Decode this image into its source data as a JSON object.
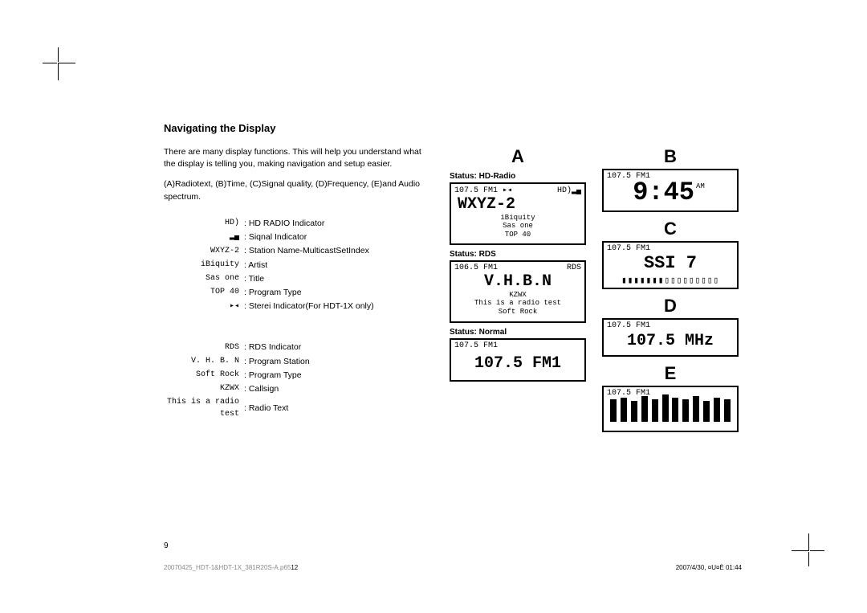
{
  "heading": "Navigating the Display",
  "intro": {
    "p1": "There are many display functions. This will help you understand what the display is telling you, making navigation and setup easier.",
    "p2": "(A)Radiotext, (B)Time, (C)Signal quality, (D)Frequency, (E)and Audio spectrum."
  },
  "legend_group1": [
    {
      "key": "HD)",
      "val": "HD RADIO Indicator"
    },
    {
      "key": "▂▄",
      "val": "Siqnal Indicator"
    },
    {
      "key": "WXYZ-2",
      "val": "Station Name-MulticastSetIndex"
    },
    {
      "key": "iBiquity",
      "val": "Artist"
    },
    {
      "key": "Sas one",
      "val": "Title"
    },
    {
      "key": "TOP 40",
      "val": "Program Type"
    },
    {
      "key": "▸◂",
      "val": "Sterei Indicator(For HDT-1X only)"
    }
  ],
  "legend_group2": [
    {
      "key": "RDS",
      "val": "RDS Indicator"
    },
    {
      "key": "V. H. B. N",
      "val": "Program Station"
    },
    {
      "key": "Soft Rock",
      "val": "Program Type"
    },
    {
      "key": "KZWX",
      "val": "Callsign"
    },
    {
      "key": "This is a radio test",
      "val": "Radio Text"
    }
  ],
  "panels": {
    "A": {
      "letter": "A",
      "status": "Status: HD-Radio",
      "hdr_left": "107.5 FM1 ▸◂",
      "hdr_right": "HD)▂▄",
      "big": "WXYZ-2",
      "lines": [
        "iBiquity",
        "Sas one",
        "TOP 40"
      ]
    },
    "RDS": {
      "status": "Status: RDS",
      "hdr_left": "106.5 FM1",
      "hdr_right": "RDS",
      "big": "V.H.B.N",
      "lines": [
        "KZWX",
        "This is a radio test",
        "Soft Rock"
      ]
    },
    "Normal": {
      "status": "Status: Normal",
      "hdr_left": "107.5 FM1",
      "big": "107.5 FM1"
    },
    "B": {
      "letter": "B",
      "hdr_left": "107.5 FM1",
      "ampm": "AM",
      "big": "9:45"
    },
    "C": {
      "letter": "C",
      "hdr_left": "107.5 FM1",
      "big": "SSI 7",
      "bars": "▮▮▮▮▮▮▮▯▯▯▯▯▯▯▯▯"
    },
    "D": {
      "letter": "D",
      "hdr_left": "107.5 FM1",
      "big": "107.5 MHz"
    },
    "E": {
      "letter": "E",
      "hdr_left": "107.5 FM1",
      "spectrum": [
        28,
        30,
        26,
        32,
        28,
        34,
        30,
        28,
        32,
        26,
        30,
        28
      ]
    }
  },
  "page_num": "9",
  "footer_left_file": "20070425_HDT-1&HDT-1X_381R20S-A.p65",
  "footer_left_pn": "12",
  "footer_right": "2007/4/30, ¤U¤È 01:44"
}
